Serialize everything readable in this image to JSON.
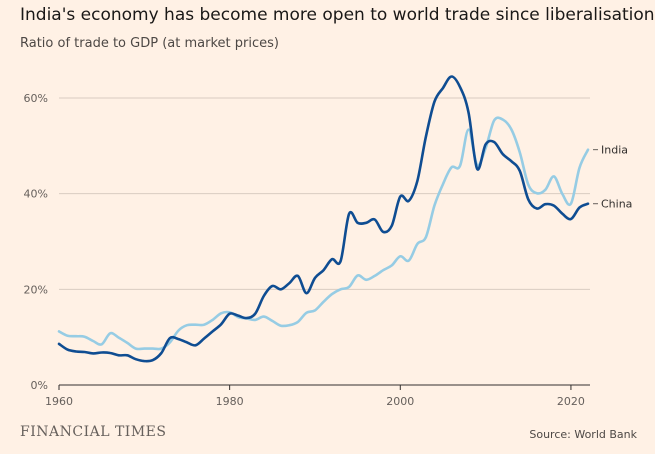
{
  "title": "India's economy has become more open to world trade since liberalisation",
  "subtitle": "Ratio of trade to GDP (at market prices)",
  "brand": "FINANCIAL TIMES",
  "source": "Source: World Bank",
  "colors": {
    "background": "#fff1e5",
    "india": "#96cce4",
    "china": "#0f4d92",
    "grid": "#d9ccc1",
    "axis": "#33302e"
  },
  "chart_data": {
    "type": "line",
    "title": "India's economy has become more open to world trade since liberalisation",
    "subtitle": "Ratio of trade to GDP (at market prices)",
    "xlim": [
      1960,
      2022
    ],
    "ylim": [
      0,
      60
    ],
    "x_ticks": [
      {
        "value": 1960,
        "label": "1960"
      },
      {
        "value": 1980,
        "label": "1980"
      },
      {
        "value": 2000,
        "label": "2000"
      },
      {
        "value": 2020,
        "label": "2020"
      }
    ],
    "y_ticks": [
      {
        "value": 0,
        "label": "0%"
      },
      {
        "value": 20,
        "label": "20%"
      },
      {
        "value": 40,
        "label": "40%"
      },
      {
        "value": 60,
        "label": "60%"
      }
    ],
    "x": [
      1960,
      1961,
      1962,
      1963,
      1964,
      1965,
      1966,
      1967,
      1968,
      1969,
      1970,
      1971,
      1972,
      1973,
      1974,
      1975,
      1976,
      1977,
      1978,
      1979,
      1980,
      1981,
      1982,
      1983,
      1984,
      1985,
      1986,
      1987,
      1988,
      1989,
      1990,
      1991,
      1992,
      1993,
      1994,
      1995,
      1996,
      1997,
      1998,
      1999,
      2000,
      2001,
      2002,
      2003,
      2004,
      2005,
      2006,
      2007,
      2008,
      2009,
      2010,
      2011,
      2012,
      2013,
      2014,
      2015,
      2016,
      2017,
      2018,
      2019,
      2020,
      2021,
      2022
    ],
    "series": [
      {
        "name": "India",
        "color": "#96cce4",
        "values": [
          11.2,
          10.3,
          10.2,
          10.1,
          9.2,
          8.5,
          10.8,
          9.9,
          8.8,
          7.6,
          7.6,
          7.6,
          7.6,
          8.9,
          11.4,
          12.5,
          12.6,
          12.6,
          13.6,
          15.0,
          15.2,
          14.2,
          13.9,
          13.6,
          14.3,
          13.4,
          12.4,
          12.5,
          13.2,
          15.1,
          15.6,
          17.4,
          19.0,
          20.0,
          20.5,
          22.9,
          22.0,
          22.8,
          24.0,
          25.0,
          26.9,
          26.0,
          29.5,
          30.9,
          37.5,
          42.0,
          45.5,
          45.8,
          53.4,
          46.0,
          49.5,
          55.3,
          55.5,
          53.5,
          48.7,
          41.9,
          40.1,
          40.8,
          43.6,
          39.9,
          37.9,
          45.4,
          49.2
        ]
      },
      {
        "name": "China",
        "color": "#0f4d92",
        "values": [
          8.6,
          7.4,
          7.0,
          6.9,
          6.6,
          6.8,
          6.7,
          6.2,
          6.2,
          5.4,
          5.0,
          5.2,
          6.7,
          9.8,
          9.6,
          8.9,
          8.3,
          9.7,
          11.2,
          12.7,
          14.9,
          14.5,
          14.0,
          14.9,
          18.6,
          20.7,
          20.0,
          21.3,
          22.8,
          19.2,
          22.4,
          24.0,
          26.3,
          25.9,
          35.8,
          33.9,
          33.9,
          34.6,
          32.0,
          33.3,
          39.4,
          38.5,
          42.7,
          51.9,
          59.2,
          62.1,
          64.5,
          62.3,
          57.0,
          45.2,
          50.3,
          50.8,
          48.3,
          46.8,
          44.8,
          38.8,
          36.9,
          37.8,
          37.5,
          35.8,
          34.7,
          37.1,
          37.9
        ]
      }
    ]
  }
}
